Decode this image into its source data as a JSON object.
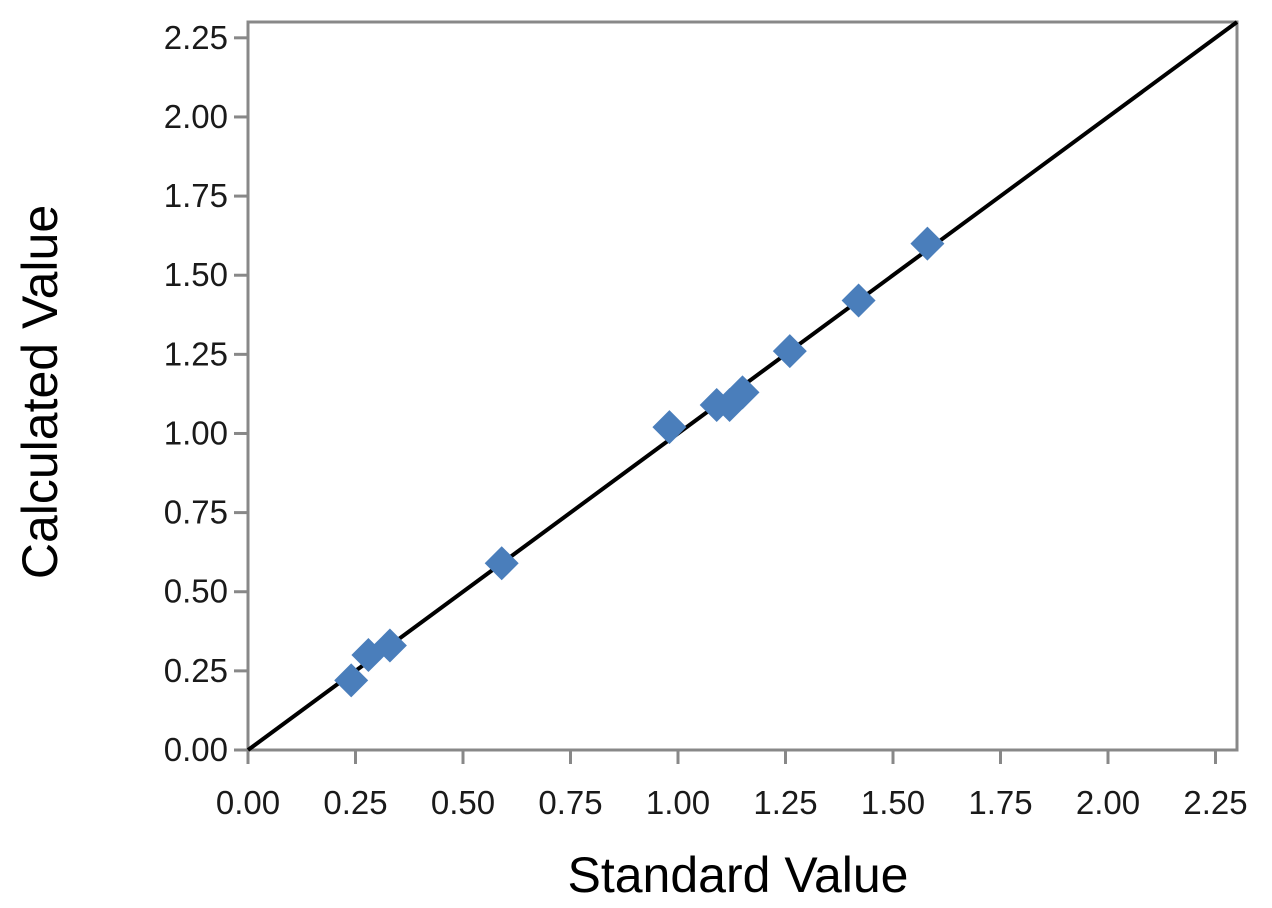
{
  "chart_data": {
    "type": "scatter",
    "title": "",
    "xlabel": "Standard Value",
    "ylabel": "Calculated Value",
    "xlim": [
      0,
      2.3
    ],
    "ylim": [
      0,
      2.3
    ],
    "x_ticks": [
      "0.00",
      "0.25",
      "0.50",
      "0.75",
      "1.00",
      "1.25",
      "1.50",
      "1.75",
      "2.00",
      "2.25"
    ],
    "y_ticks": [
      "0.00",
      "0.25",
      "0.50",
      "0.75",
      "1.00",
      "1.25",
      "1.50",
      "1.75",
      "2.00",
      "2.25"
    ],
    "grid": false,
    "legend": "none",
    "series": [
      {
        "marker": "diamond",
        "color": "#4a7ebb",
        "points": [
          {
            "x": 0.24,
            "y": 0.22
          },
          {
            "x": 0.28,
            "y": 0.3
          },
          {
            "x": 0.33,
            "y": 0.33
          },
          {
            "x": 0.59,
            "y": 0.59
          },
          {
            "x": 0.98,
            "y": 1.02
          },
          {
            "x": 1.09,
            "y": 1.09
          },
          {
            "x": 1.12,
            "y": 1.09
          },
          {
            "x": 1.15,
            "y": 1.13
          },
          {
            "x": 1.26,
            "y": 1.26
          },
          {
            "x": 1.42,
            "y": 1.42
          },
          {
            "x": 1.58,
            "y": 1.6
          }
        ]
      }
    ],
    "reference_line": {
      "x": [
        0,
        2.3
      ],
      "y": [
        0,
        2.3
      ],
      "color": "#000000"
    },
    "frame_color": "#888888"
  }
}
